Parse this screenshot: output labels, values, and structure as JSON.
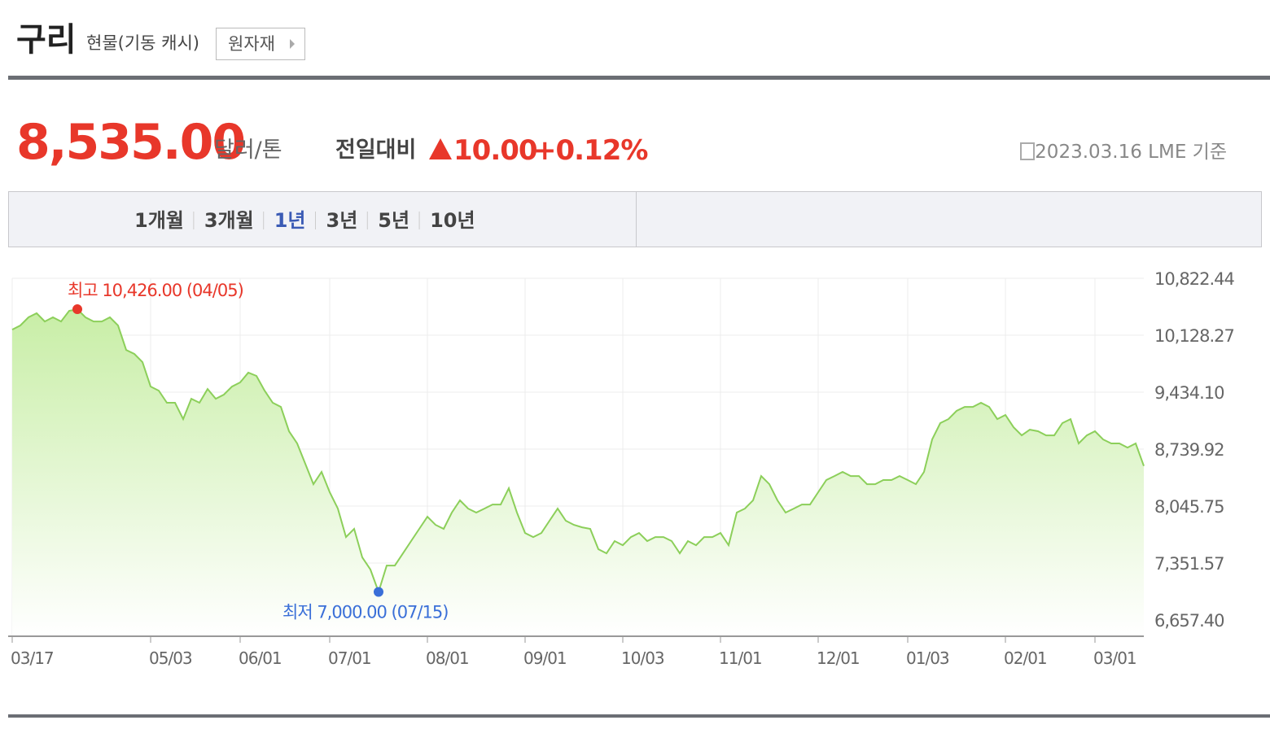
{
  "header": {
    "title": "구리",
    "subtitle": "현물(기동 캐시)",
    "button": "원자재"
  },
  "quote": {
    "price": "8,535.00",
    "unit": "달러/톤",
    "change_label": "전일대비",
    "change": "10.00",
    "change_pct": "+0.12%",
    "date": "2023.03.16 LME 기준"
  },
  "tabs": {
    "items": [
      "1개월",
      "3개월",
      "1년",
      "3년",
      "5년",
      "10년"
    ],
    "active": "1년"
  },
  "chart_data": {
    "type": "line",
    "color": "#8ccf5a",
    "fill_top": "#c8eea6",
    "grid": true,
    "high_label": "최고 10,426.00 (04/05)",
    "high_color": "#e8372a",
    "low_label": "최저 7,000.00 (07/15)",
    "low_color": "#3a6fd8",
    "ylim": [
      6459.1,
      10822.44
    ],
    "yticks": [
      {
        "value": 10822.44,
        "label": "10,822.44"
      },
      {
        "value": 10128.27,
        "label": "10,128.27"
      },
      {
        "value": 9434.1,
        "label": "9,434.10"
      },
      {
        "value": 8739.92,
        "label": "8,739.92"
      },
      {
        "value": 8045.75,
        "label": "8,045.75"
      },
      {
        "value": 7351.57,
        "label": "7,351.57"
      },
      {
        "value": 6657.4,
        "label": "6,657.40"
      }
    ],
    "categories": [
      "03/17",
      null,
      null,
      null,
      null,
      null,
      null,
      null,
      null,
      null,
      null,
      null,
      null,
      null,
      null,
      null,
      null,
      "05/03",
      null,
      null,
      null,
      null,
      null,
      null,
      null,
      null,
      null,
      null,
      "06/01",
      null,
      null,
      null,
      null,
      null,
      null,
      null,
      null,
      null,
      null,
      "07/01",
      null,
      null,
      null,
      null,
      null,
      null,
      null,
      null,
      null,
      null,
      null,
      "08/01",
      null,
      null,
      null,
      null,
      null,
      null,
      null,
      null,
      null,
      null,
      null,
      "09/01",
      null,
      null,
      null,
      null,
      null,
      null,
      null,
      null,
      null,
      null,
      null,
      "10/03",
      null,
      null,
      null,
      null,
      null,
      null,
      null,
      null,
      null,
      null,
      null,
      "11/01",
      null,
      null,
      null,
      null,
      null,
      null,
      null,
      null,
      null,
      null,
      null,
      "12/01",
      null,
      null,
      null,
      null,
      null,
      null,
      null,
      null,
      null,
      null,
      "01/03",
      null,
      null,
      null,
      null,
      null,
      null,
      null,
      null,
      null,
      null,
      null,
      "02/01",
      null,
      null,
      null,
      null,
      null,
      null,
      null,
      null,
      null,
      null,
      "03/01",
      null,
      null,
      null,
      null,
      null,
      null
    ],
    "values": [
      10197,
      10247,
      10346,
      10396,
      10296,
      10346,
      10296,
      10426,
      10445,
      10346,
      10296,
      10296,
      10346,
      10247,
      9949,
      9900,
      9801,
      9503,
      9453,
      9305,
      9305,
      9106,
      9354,
      9305,
      9473,
      9354,
      9404,
      9503,
      9553,
      9672,
      9632,
      9453,
      9305,
      9255,
      8958,
      8809,
      8561,
      8313,
      8462,
      8214,
      8015,
      7668,
      7768,
      7420,
      7272,
      7000,
      7321,
      7321,
      7470,
      7619,
      7768,
      7916,
      7817,
      7768,
      7966,
      8115,
      8015,
      7966,
      8015,
      8065,
      8065,
      8263,
      7966,
      7718,
      7668,
      7718,
      7867,
      8015,
      7867,
      7817,
      7787,
      7768,
      7520,
      7470,
      7619,
      7569,
      7668,
      7718,
      7619,
      7668,
      7668,
      7619,
      7470,
      7619,
      7569,
      7668,
      7668,
      7718,
      7569,
      7966,
      8015,
      8115,
      8412,
      8313,
      8115,
      7966,
      8015,
      8065,
      8065,
      8214,
      8363,
      8412,
      8462,
      8412,
      8412,
      8313,
      8313,
      8363,
      8363,
      8412,
      8363,
      8313,
      8462,
      8858,
      9057,
      9106,
      9206,
      9255,
      9255,
      9305,
      9255,
      9106,
      9156,
      9007,
      8908,
      8977,
      8958,
      8908,
      8908,
      9057,
      9106,
      8809,
      8908,
      8958,
      8858,
      8809,
      8809,
      8759,
      8809,
      8535
    ]
  }
}
